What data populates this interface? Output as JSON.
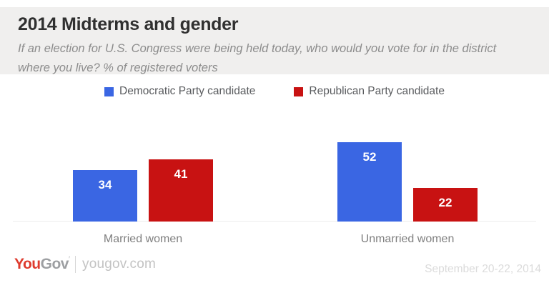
{
  "header": {
    "title": "2014 Midterms and gender",
    "subtitle": "If an election for U.S. Congress were being held today, who would you vote for in the district where you live? % of registered voters"
  },
  "legend": [
    {
      "label": "Democratic Party candidate",
      "color": "#3a66e3",
      "icon": "blue-square-swatch"
    },
    {
      "label": "Republican Party candidate",
      "color": "#c81212",
      "icon": "red-square-swatch"
    }
  ],
  "chart_data": {
    "type": "bar",
    "categories": [
      "Married women",
      "Unmarried women"
    ],
    "series": [
      {
        "name": "Democratic Party candidate",
        "color": "#3a66e3",
        "values": [
          34,
          52
        ]
      },
      {
        "name": "Republican Party candidate",
        "color": "#c81212",
        "values": [
          41,
          22
        ]
      }
    ],
    "title": "2014 Midterms and gender",
    "xlabel": "",
    "ylabel": "% of registered voters",
    "ylim": [
      0,
      57
    ],
    "grid": false,
    "legend_position": "top",
    "value_labels": "inside-top-white-bold"
  },
  "footer": {
    "logo_you": "You",
    "logo_gov": "Gov",
    "logo_tick": "′",
    "site": "yougov.com",
    "date": "September 20-22, 2014"
  }
}
